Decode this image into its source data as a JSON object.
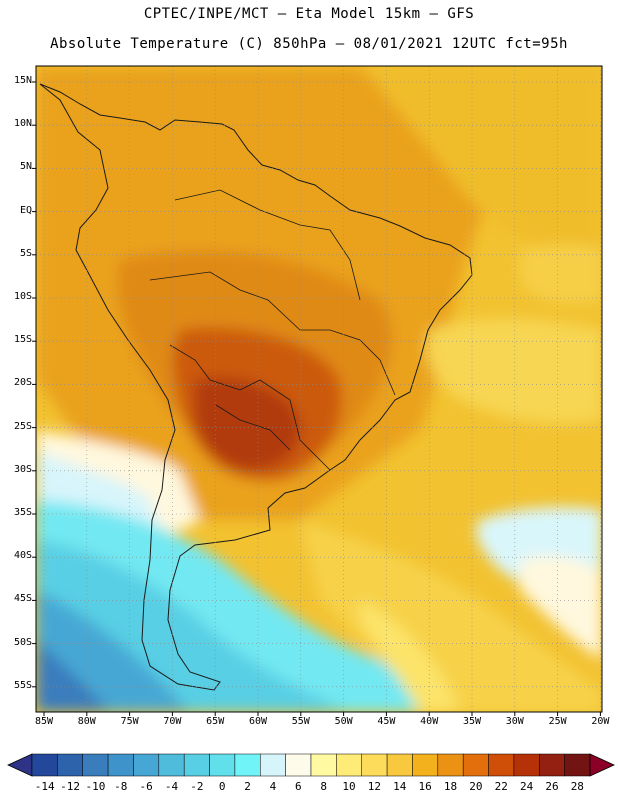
{
  "header": {
    "line1": "CPTEC/INPE/MCT –  Eta Model 15km – GFS",
    "line2": "Absolute Temperature (C) 850hPa – 08/01/2021 12UTC fct=95h"
  },
  "map": {
    "lat_labels": [
      "15N",
      "10N",
      "5N",
      "EQ",
      "5S",
      "10S",
      "15S",
      "20S",
      "25S",
      "30S",
      "35S",
      "40S",
      "45S",
      "50S",
      "55S"
    ],
    "lon_labels": [
      "85W",
      "80W",
      "75W",
      "70W",
      "65W",
      "60W",
      "55W",
      "50W",
      "45W",
      "40W",
      "35W",
      "30W",
      "25W",
      "20W"
    ]
  },
  "colorbar": {
    "labels": [
      "-14",
      "-12",
      "-10",
      "-8",
      "-6",
      "-4",
      "-2",
      "0",
      "2",
      "4",
      "6",
      "8",
      "10",
      "12",
      "14",
      "16",
      "18",
      "20",
      "22",
      "24",
      "26",
      "28"
    ],
    "colors": [
      "#23479a",
      "#2d63aa",
      "#3a7dbd",
      "#3f93cb",
      "#47a7d4",
      "#4fbcdc",
      "#58cfe4",
      "#61e0ec",
      "#70f4f7",
      "#d6f5fb",
      "#fffbea",
      "#fff9a2",
      "#ffec78",
      "#fcdc5a",
      "#f8c83e",
      "#f4b11e",
      "#eb9214",
      "#e26f0c",
      "#cf4e08",
      "#b53209",
      "#932010",
      "#711412"
    ],
    "under_color": "#2f3387",
    "over_color": "#8b0025"
  }
}
